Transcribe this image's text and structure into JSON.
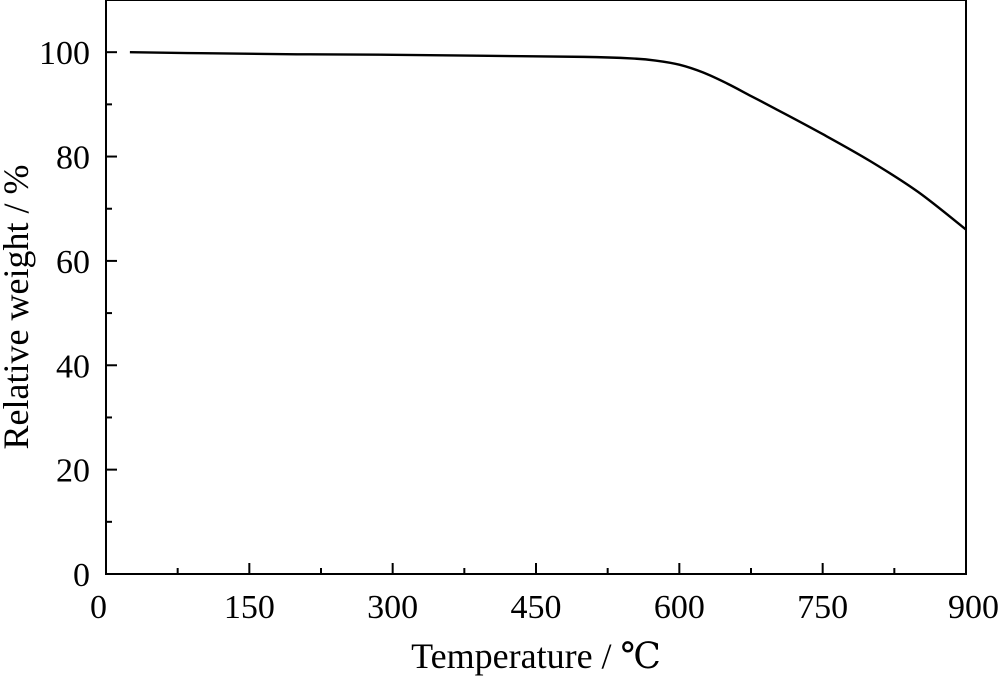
{
  "chart_data": {
    "type": "line",
    "title": "",
    "xlabel": "Temperature / ℃",
    "ylabel": "Relative weight / %",
    "xlim": [
      0,
      900
    ],
    "ylim": [
      0,
      110
    ],
    "x_ticks": [
      0,
      150,
      300,
      450,
      600,
      750,
      900
    ],
    "y_ticks": [
      0,
      20,
      40,
      60,
      80,
      100
    ],
    "x_minor_step": 75,
    "y_minor_step": 10,
    "grid": false,
    "legend": "none",
    "series": [
      {
        "color": "#000000",
        "x": [
          25,
          100,
          200,
          300,
          400,
          500,
          550,
          575,
          600,
          625,
          650,
          675,
          700,
          750,
          800,
          850,
          900
        ],
        "y": [
          100,
          99.8,
          99.6,
          99.5,
          99.3,
          99.1,
          98.8,
          98.4,
          97.6,
          96.1,
          94.0,
          91.6,
          89.2,
          84.3,
          79.1,
          73.2,
          66.0
        ]
      }
    ]
  }
}
